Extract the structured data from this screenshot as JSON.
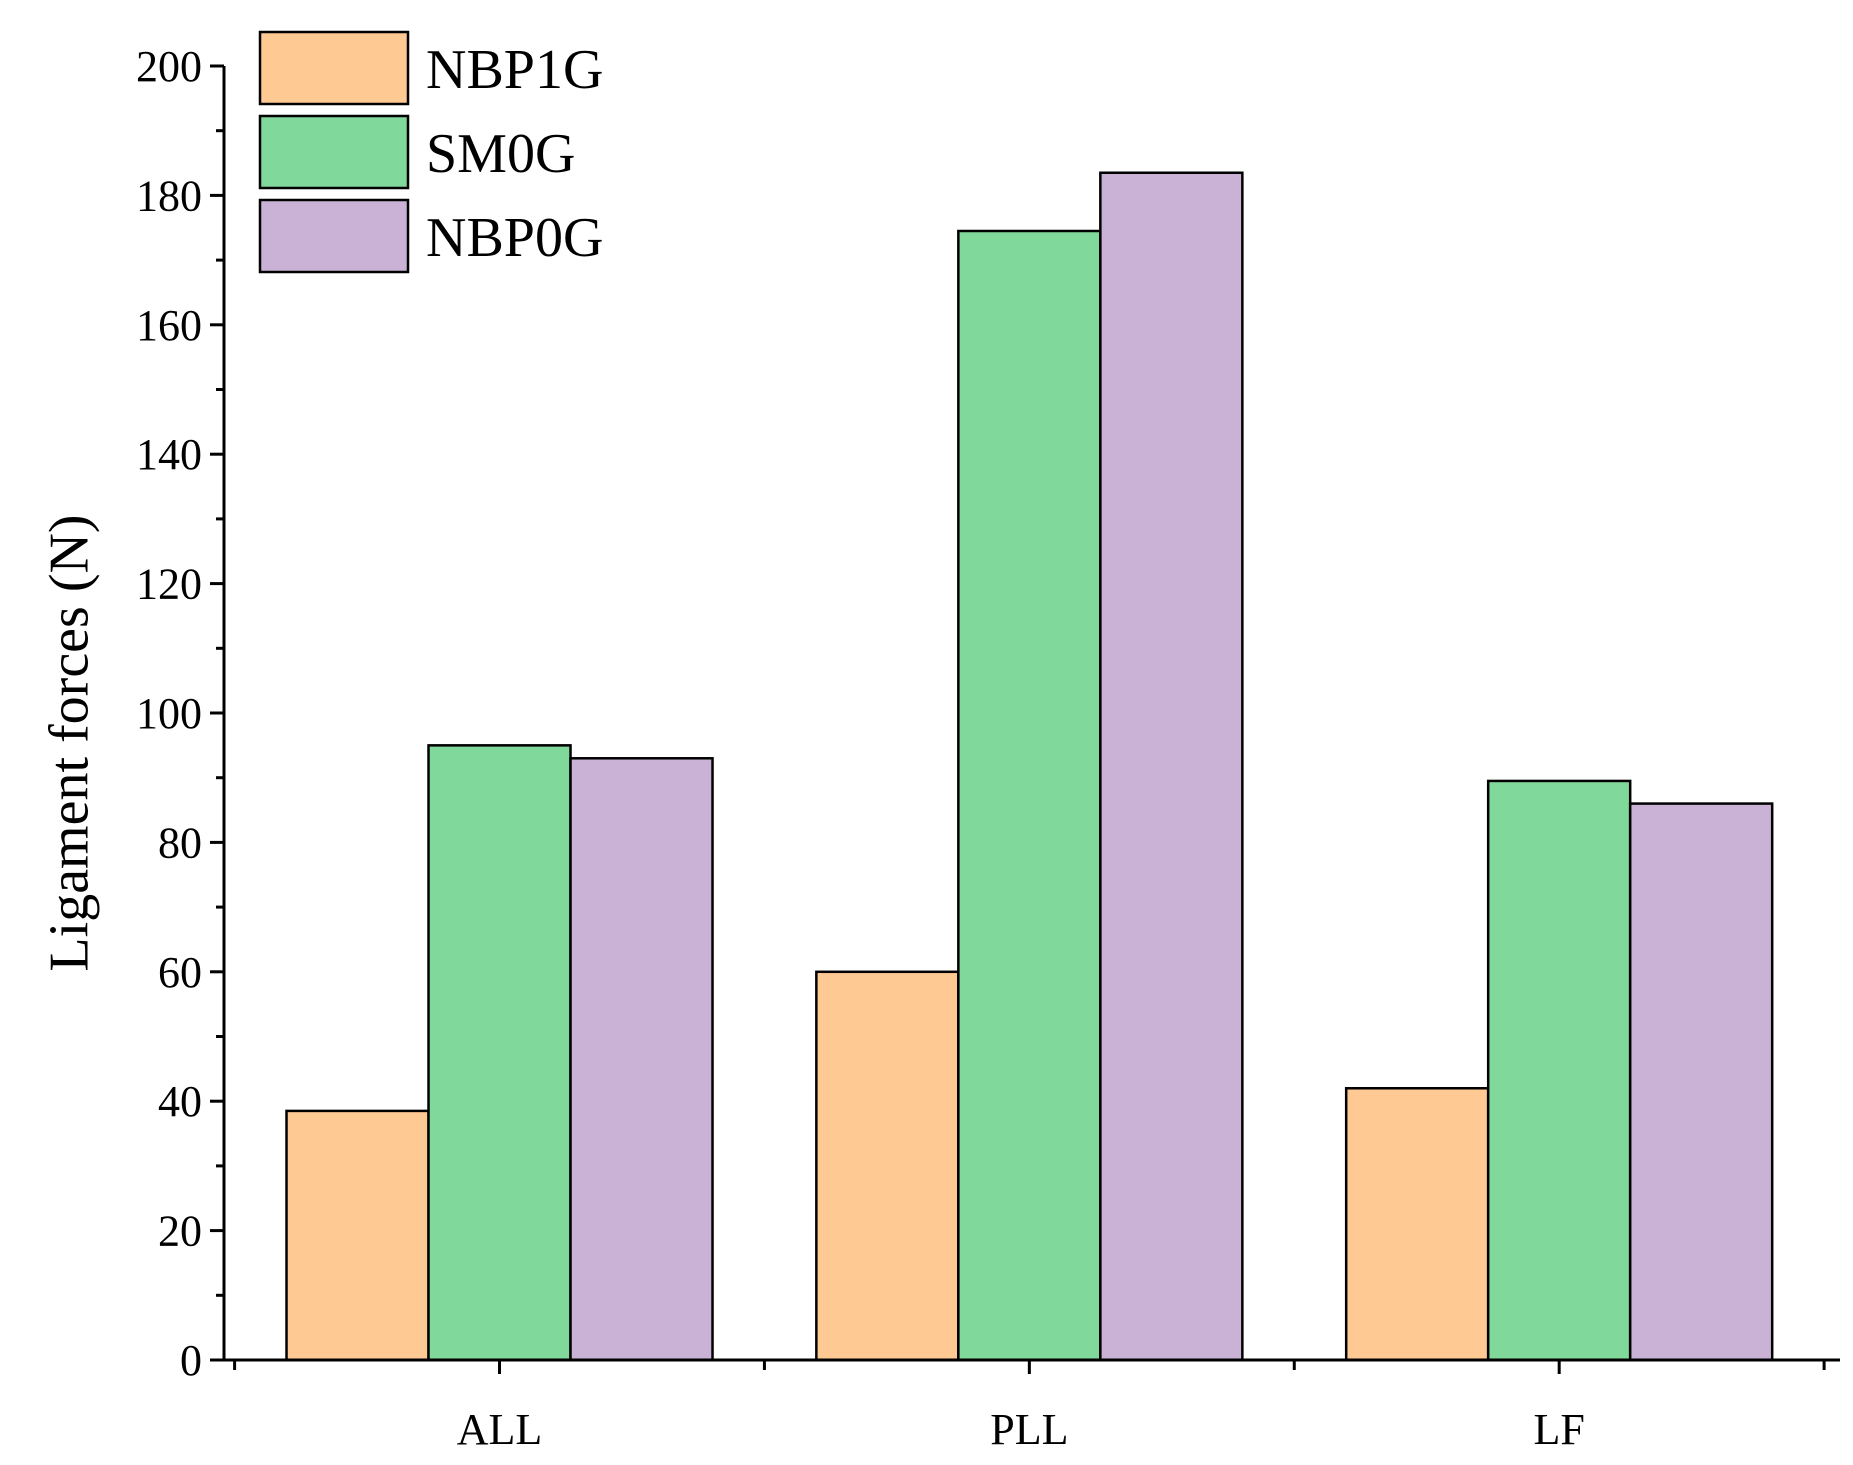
{
  "chart_data": {
    "type": "bar",
    "title": "",
    "xlabel": "",
    "ylabel": "Ligament forces (N)",
    "ylim": [
      0,
      200
    ],
    "yticks": [
      0,
      20,
      40,
      60,
      80,
      100,
      120,
      140,
      160,
      180,
      200
    ],
    "categories": [
      "ALL",
      "PLL",
      "LF"
    ],
    "series": [
      {
        "name": "NBP1G",
        "color": "#FFC993",
        "values": [
          38.5,
          60,
          42
        ]
      },
      {
        "name": "SM0G",
        "color": "#80D89A",
        "values": [
          95,
          174.5,
          89.5
        ]
      },
      {
        "name": "NBP0G",
        "color": "#C9B2D6",
        "values": [
          93,
          183.5,
          86
        ]
      }
    ],
    "legend": {
      "position": "top-left"
    },
    "grid": false
  }
}
